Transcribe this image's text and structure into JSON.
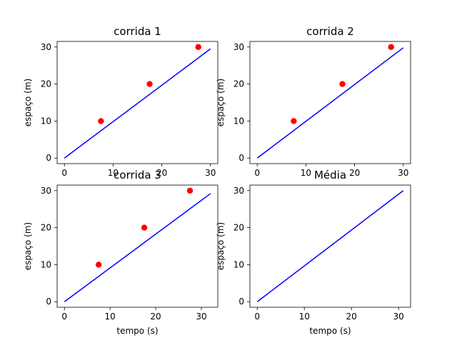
{
  "chart_data": [
    {
      "type": "scatter",
      "title": "corrida 1",
      "xlabel": "",
      "ylabel": "espaço (m)",
      "xlim": [
        -1.5,
        31.5
      ],
      "ylim": [
        -1.5,
        31.5
      ],
      "xticks": [
        "0",
        "10",
        "20",
        "30"
      ],
      "yticks": [
        "0",
        "10",
        "20",
        "30"
      ],
      "series": [
        {
          "kind": "points",
          "color": "#ff0000",
          "x": [
            7.5,
            17.5,
            27.5
          ],
          "y": [
            10,
            20,
            30
          ]
        },
        {
          "kind": "line",
          "color": "#0000ff",
          "x": [
            0,
            30
          ],
          "y": [
            0,
            29.5
          ]
        }
      ]
    },
    {
      "type": "scatter",
      "title": "corrida 2",
      "xlabel": "",
      "ylabel": "espaço (m)",
      "xlim": [
        -1.5,
        31.5
      ],
      "ylim": [
        -1.5,
        31.5
      ],
      "xticks": [
        "0",
        "10",
        "20",
        "30"
      ],
      "yticks": [
        "0",
        "10",
        "20",
        "30"
      ],
      "series": [
        {
          "kind": "points",
          "color": "#ff0000",
          "x": [
            7.5,
            17.5,
            27.5
          ],
          "y": [
            10,
            20,
            30
          ]
        },
        {
          "kind": "line",
          "color": "#0000ff",
          "x": [
            0,
            30
          ],
          "y": [
            0,
            29.8
          ]
        }
      ]
    },
    {
      "type": "scatter",
      "title": "corrida 3",
      "xlabel": "tempo (s)",
      "ylabel": "espaço (m)",
      "xlim": [
        -1.6,
        33.6
      ],
      "ylim": [
        -1.5,
        31.5
      ],
      "xticks": [
        "0",
        "10",
        "20",
        "30"
      ],
      "yticks": [
        "0",
        "10",
        "20",
        "30"
      ],
      "series": [
        {
          "kind": "points",
          "color": "#ff0000",
          "x": [
            7.5,
            17.5,
            27.5
          ],
          "y": [
            10,
            20,
            30
          ]
        },
        {
          "kind": "line",
          "color": "#0000ff",
          "x": [
            0,
            32
          ],
          "y": [
            0,
            29.2
          ]
        }
      ]
    },
    {
      "type": "line",
      "title": "Média",
      "xlabel": "tempo (s)",
      "ylabel": "espaço (m)",
      "xlim": [
        -1.55,
        32.55
      ],
      "ylim": [
        -1.5,
        31.5
      ],
      "xticks": [
        "0",
        "10",
        "20",
        "30"
      ],
      "yticks": [
        "0",
        "10",
        "20",
        "30"
      ],
      "series": [
        {
          "kind": "line",
          "color": "#0000ff",
          "x": [
            0,
            31
          ],
          "y": [
            0,
            30
          ]
        }
      ]
    }
  ]
}
